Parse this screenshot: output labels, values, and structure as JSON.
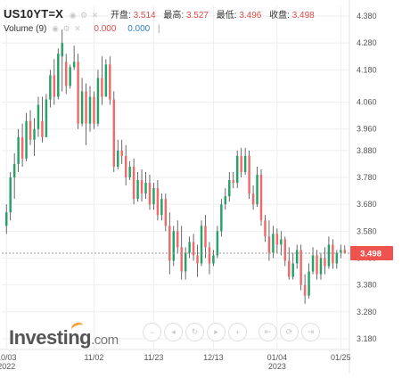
{
  "legend": {
    "symbol": "US10YT=X",
    "open_label": "开盘:",
    "open_value": "3.514",
    "high_label": "最高:",
    "high_value": "3.527",
    "low_label": "最低:",
    "low_value": "3.496",
    "close_label": "收盘:",
    "close_value": "3.498",
    "volume_label": "Volume (9)",
    "volume_value_1": "0.000",
    "volume_value_2": "0.000"
  },
  "logo": {
    "main": "Investing",
    "suffix": ".com"
  },
  "colors": {
    "up": "#26a269",
    "down": "#ef6b6b",
    "accent": "#ef5350",
    "grid": "#eeeeee"
  },
  "chart_data": {
    "type": "candlestick",
    "y_axis": {
      "ticks": [
        4.38,
        4.28,
        4.18,
        4.06,
        3.96,
        3.88,
        3.78,
        3.68,
        3.58,
        3.48,
        3.38,
        3.28,
        3.18
      ],
      "ylim": [
        3.14,
        4.42
      ]
    },
    "x_axis": {
      "ticks": [
        {
          "label": "10/03",
          "sublabel": "2022",
          "index": 0
        },
        {
          "label": "11/02",
          "sublabel": "",
          "index": 22
        },
        {
          "label": "11/23",
          "sublabel": "",
          "index": 37
        },
        {
          "label": "12/13",
          "sublabel": "",
          "index": 52
        },
        {
          "label": "01/04",
          "sublabel": "2023",
          "index": 68
        },
        {
          "label": "01/25",
          "sublabel": "",
          "index": 84
        }
      ]
    },
    "last_price": "3.498",
    "ohlc": [
      [
        3.6,
        3.68,
        3.57,
        3.65
      ],
      [
        3.65,
        3.8,
        3.62,
        3.78
      ],
      [
        3.78,
        3.87,
        3.7,
        3.83
      ],
      [
        3.83,
        3.96,
        3.8,
        3.93
      ],
      [
        3.93,
        3.98,
        3.82,
        3.85
      ],
      [
        3.85,
        4.02,
        3.84,
        3.99
      ],
      [
        3.99,
        4.03,
        3.9,
        3.92
      ],
      [
        3.92,
        4.0,
        3.86,
        3.96
      ],
      [
        3.96,
        4.08,
        3.93,
        4.05
      ],
      [
        3.99,
        4.08,
        3.91,
        3.93
      ],
      [
        3.93,
        4.09,
        3.93,
        4.07
      ],
      [
        4.07,
        4.18,
        4.04,
        4.16
      ],
      [
        4.16,
        4.22,
        4.05,
        4.08
      ],
      [
        4.08,
        4.26,
        4.07,
        4.24
      ],
      [
        4.23,
        4.33,
        4.1,
        4.28
      ],
      [
        4.21,
        4.24,
        4.09,
        4.12
      ],
      [
        4.12,
        4.2,
        4.11,
        4.19
      ],
      [
        4.19,
        4.27,
        4.18,
        4.21
      ],
      [
        4.21,
        4.24,
        3.96,
        3.98
      ],
      [
        3.98,
        4.15,
        3.97,
        4.1
      ],
      [
        4.1,
        4.13,
        3.9,
        3.98
      ],
      [
        3.98,
        4.12,
        3.95,
        4.08
      ],
      [
        4.08,
        4.1,
        3.96,
        3.98
      ],
      [
        3.98,
        4.18,
        3.97,
        4.15
      ],
      [
        4.15,
        4.23,
        4.05,
        4.08
      ],
      [
        4.08,
        4.22,
        4.08,
        4.2
      ],
      [
        4.2,
        4.23,
        4.05,
        4.07
      ],
      [
        4.07,
        4.1,
        3.8,
        3.82
      ],
      [
        3.82,
        3.92,
        3.81,
        3.88
      ],
      [
        3.88,
        3.92,
        3.83,
        3.86
      ],
      [
        3.86,
        3.9,
        3.75,
        3.78
      ],
      [
        3.78,
        3.84,
        3.77,
        3.82
      ],
      [
        3.82,
        3.85,
        3.68,
        3.7
      ],
      [
        3.7,
        3.8,
        3.69,
        3.77
      ],
      [
        3.77,
        3.81,
        3.69,
        3.72
      ],
      [
        3.72,
        3.8,
        3.7,
        3.76
      ],
      [
        3.76,
        3.79,
        3.66,
        3.68
      ],
      [
        3.68,
        3.76,
        3.66,
        3.74
      ],
      [
        3.74,
        3.77,
        3.62,
        3.64
      ],
      [
        3.64,
        3.72,
        3.62,
        3.7
      ],
      [
        3.7,
        3.72,
        3.58,
        3.6
      ],
      [
        3.6,
        3.65,
        3.42,
        3.47
      ],
      [
        3.47,
        3.6,
        3.45,
        3.58
      ],
      [
        3.58,
        3.62,
        3.5,
        3.52
      ],
      [
        3.52,
        3.6,
        3.4,
        3.43
      ],
      [
        3.43,
        3.52,
        3.4,
        3.5
      ],
      [
        3.5,
        3.56,
        3.48,
        3.54
      ],
      [
        3.54,
        3.57,
        3.47,
        3.49
      ],
      [
        3.49,
        3.53,
        3.41,
        3.46
      ],
      [
        3.46,
        3.62,
        3.45,
        3.6
      ],
      [
        3.6,
        3.64,
        3.48,
        3.52
      ],
      [
        3.52,
        3.54,
        3.42,
        3.46
      ],
      [
        3.46,
        3.51,
        3.45,
        3.49
      ],
      [
        3.49,
        3.6,
        3.48,
        3.58
      ],
      [
        3.58,
        3.7,
        3.56,
        3.68
      ],
      [
        3.68,
        3.74,
        3.66,
        3.71
      ],
      [
        3.71,
        3.8,
        3.69,
        3.77
      ],
      [
        3.77,
        3.8,
        3.74,
        3.76
      ],
      [
        3.76,
        3.88,
        3.74,
        3.86
      ],
      [
        3.86,
        3.89,
        3.78,
        3.8
      ],
      [
        3.8,
        3.89,
        3.79,
        3.86
      ],
      [
        3.86,
        3.88,
        3.7,
        3.72
      ],
      [
        3.72,
        3.75,
        3.66,
        3.68
      ],
      [
        3.68,
        3.82,
        3.67,
        3.79
      ],
      [
        3.79,
        3.81,
        3.6,
        3.62
      ],
      [
        3.62,
        3.64,
        3.54,
        3.56
      ],
      [
        3.56,
        3.62,
        3.47,
        3.5
      ],
      [
        3.5,
        3.6,
        3.48,
        3.57
      ],
      [
        3.57,
        3.59,
        3.5,
        3.53
      ],
      [
        3.53,
        3.58,
        3.49,
        3.55
      ],
      [
        3.55,
        3.56,
        3.45,
        3.47
      ],
      [
        3.47,
        3.52,
        3.4,
        3.41
      ],
      [
        3.41,
        3.5,
        3.4,
        3.46
      ],
      [
        3.46,
        3.53,
        3.44,
        3.51
      ],
      [
        3.51,
        3.53,
        3.36,
        3.38
      ],
      [
        3.38,
        3.42,
        3.31,
        3.34
      ],
      [
        3.34,
        3.46,
        3.33,
        3.43
      ],
      [
        3.43,
        3.52,
        3.42,
        3.49
      ],
      [
        3.49,
        3.51,
        3.4,
        3.42
      ],
      [
        3.42,
        3.5,
        3.4,
        3.48
      ],
      [
        3.48,
        3.52,
        3.42,
        3.45
      ],
      [
        3.45,
        3.56,
        3.44,
        3.53
      ],
      [
        3.53,
        3.55,
        3.44,
        3.46
      ],
      [
        3.46,
        3.51,
        3.44,
        3.5
      ],
      [
        3.5,
        3.53,
        3.48,
        3.51
      ],
      [
        3.51,
        3.527,
        3.496,
        3.498
      ]
    ]
  }
}
